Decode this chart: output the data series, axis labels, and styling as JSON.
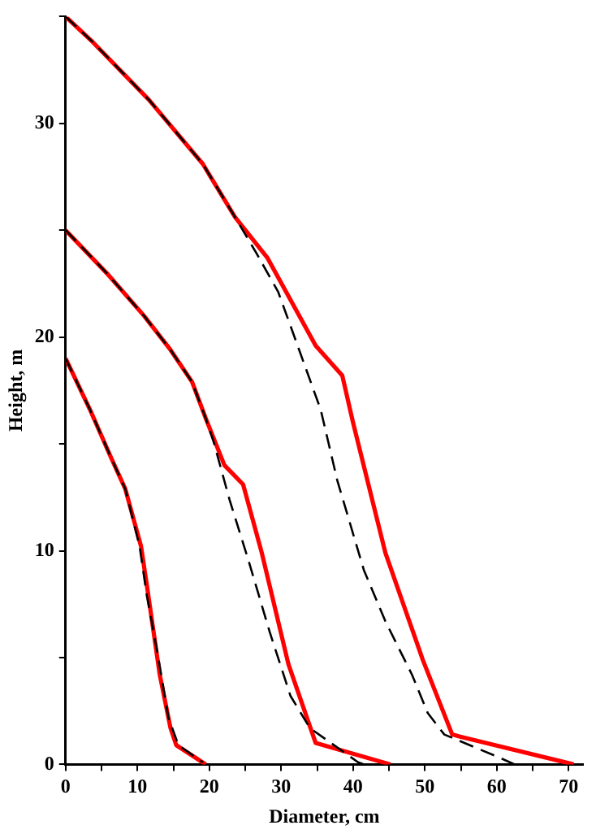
{
  "chart_data": {
    "type": "line",
    "xlabel": "Diameter, cm",
    "ylabel": "Height, m",
    "xlim": [
      0,
      72
    ],
    "ylim": [
      0,
      35
    ],
    "xticks": [
      0,
      {
        "value": 5,
        "label": null
      },
      10,
      {
        "value": 15,
        "label": null
      },
      20,
      {
        "value": 25,
        "label": null
      },
      30,
      {
        "value": 35,
        "label": null
      },
      40,
      {
        "value": 45,
        "label": null
      },
      50,
      {
        "value": 55,
        "label": null
      },
      60,
      {
        "value": 65,
        "label": null
      },
      70
    ],
    "yticks": [
      0,
      {
        "value": 5,
        "label": null
      },
      10,
      {
        "value": 15,
        "label": null
      },
      20,
      {
        "value": 25,
        "label": null
      },
      30,
      {
        "value": 35,
        "label": null
      }
    ],
    "grid": false,
    "legend": false,
    "marker": "none",
    "series": [
      {
        "color": "#000000",
        "line_style": "dashed",
        "x": [
          0,
          3.8,
          11.6,
          19.1,
          23.6,
          26.6,
          29.6,
          32.5,
          35.5,
          37.8,
          41.5,
          44.5,
          48.2,
          50.4,
          52.7,
          60.5,
          62.5
        ],
        "values": [
          35,
          33.8,
          31.1,
          28.1,
          25.6,
          23.9,
          22.1,
          19.4,
          16.6,
          13.3,
          9.1,
          6.7,
          4.2,
          2.4,
          1.4,
          0.3,
          0
        ]
      },
      {
        "color": "#ff0000",
        "line_style": "solid",
        "x": [
          0,
          3.8,
          11.6,
          19.1,
          23.6,
          28.1,
          34.8,
          38.5,
          40,
          44.5,
          49.7,
          53.8,
          54.9,
          70.7
        ],
        "values": [
          35,
          33.8,
          31.1,
          28.1,
          25.6,
          23.7,
          19.6,
          18.2,
          16,
          9.9,
          4.9,
          1.4,
          1.3,
          0
        ]
      },
      {
        "color": "#000000",
        "line_style": "dashed",
        "x": [
          0,
          5.7,
          10.9,
          14.6,
          17.6,
          19.5,
          20.6,
          22.8,
          25.4,
          28.4,
          31.3,
          34,
          40.7,
          41.5
        ],
        "values": [
          25,
          23,
          21,
          19.4,
          17.9,
          16.2,
          15.1,
          12.4,
          9.6,
          6.2,
          3.2,
          1.7,
          0.1,
          0
        ]
      },
      {
        "color": "#ff0000",
        "line_style": "solid",
        "x": [
          0,
          5.7,
          10.9,
          14.6,
          17.6,
          19.5,
          22.1,
          24.7,
          27.3,
          31,
          34.8,
          45.2
        ],
        "values": [
          25,
          23,
          21,
          19.4,
          17.9,
          16.2,
          14,
          13.1,
          9.9,
          4.7,
          1,
          0
        ]
      },
      {
        "color": "#000000",
        "line_style": "dashed",
        "x": [
          0,
          3.4,
          6.4,
          8.3,
          10.3,
          11.3,
          12.8,
          14.3,
          15.7,
          19.1
        ],
        "values": [
          19,
          16.6,
          14.3,
          12.9,
          10.2,
          7.9,
          5.2,
          2.2,
          0.9,
          0.1
        ]
      },
      {
        "color": "#ff0000",
        "line_style": "solid",
        "x": [
          0,
          3.4,
          6.4,
          8.3,
          10.5,
          11.3,
          13.1,
          14.6,
          15.4,
          19.5
        ],
        "values": [
          19,
          16.6,
          14.3,
          12.9,
          10.2,
          8.4,
          4.2,
          1.7,
          0.9,
          0
        ]
      }
    ]
  }
}
